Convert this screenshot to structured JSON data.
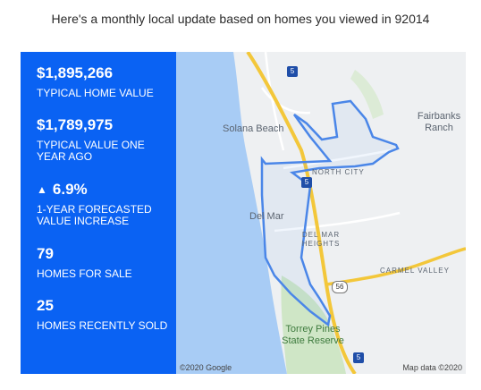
{
  "header": {
    "text": "Here's a monthly local update based on homes you viewed in 92014"
  },
  "stats": {
    "typical_value": "$1,895,266",
    "typical_value_label": "TYPICAL HOME VALUE",
    "last_year_value": "$1,789,975",
    "last_year_label": "TYPICAL VALUE ONE YEAR AGO",
    "forecast_icon": "up-arrow-icon",
    "forecast_value": "6.9%",
    "forecast_label": "1-YEAR FORECASTED VALUE INCREASE",
    "for_sale_count": "79",
    "for_sale_label": "HOMES FOR SALE",
    "sold_count": "25",
    "sold_label": "HOMES RECENTLY SOLD"
  },
  "map": {
    "labels": {
      "solana_beach": "Solana Beach",
      "fairbanks_ranch": "Fairbanks Ranch",
      "del_mar": "Del Mar",
      "del_mar_heights": "DEL MAR HEIGHTS",
      "north_city": "NORTH CITY",
      "carmel_valley": "CARMEL VALLEY",
      "torrey_pines": "Torrey Pines State Reserve",
      "shield_5": "5",
      "shield_56": "56"
    },
    "credit_left": "©2020 Google",
    "credit_right": "Map data ©2020",
    "colors": {
      "water": "#a8ccf5",
      "land": "#eef0f2",
      "park": "#cfe6c6",
      "highway": "#f3c73a",
      "boundary": "#4a86e8"
    }
  }
}
